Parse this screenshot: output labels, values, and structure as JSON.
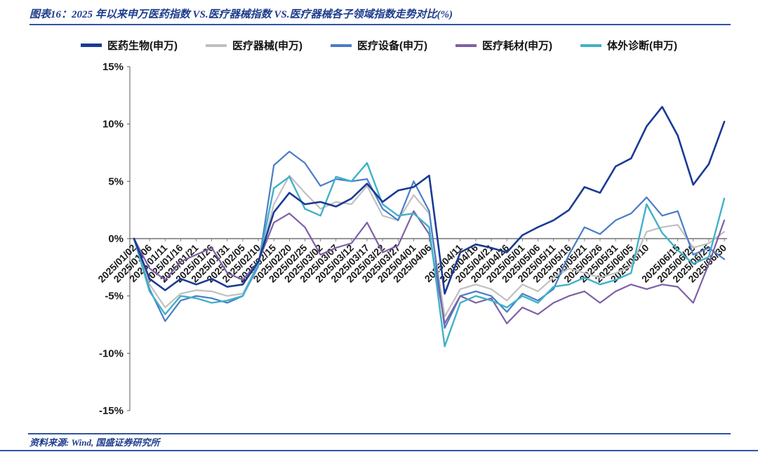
{
  "source_note": "资料来源: Wind, 国盛证券研究所",
  "accent_colors": {
    "title_blue": "#1e3c8c",
    "rule_blue": "#2e55a0",
    "axis_gray": "#595959"
  },
  "chart_data": {
    "type": "line",
    "title": "图表16：2025 年以来申万医药指数 VS.医疗器械指数 VS.医疗器械各子领域指数走势对比(%)",
    "xlabel": "",
    "ylabel": "",
    "ylim": [
      -15,
      15
    ],
    "yticks": [
      15,
      10,
      5,
      0,
      -5,
      -10,
      -15
    ],
    "ytick_labels": [
      "15%",
      "10%",
      "5%",
      "0%",
      "-5%",
      "-10%",
      "-15%"
    ],
    "grid": false,
    "legend_position": "top",
    "axis_color": "#595959",
    "draw_order": [
      1,
      2,
      3,
      4,
      0
    ],
    "categories": [
      "2025/01/02",
      "2025/01/06",
      "2025/01/11",
      "2025/01/16",
      "2025/01/21",
      "2025/01/26",
      "2025/01/31",
      "2025/02/05",
      "2025/02/10",
      "2025/02/15",
      "2025/02/20",
      "2025/02/25",
      "2025/03/02",
      "2025/03/07",
      "2025/03/12",
      "2025/03/17",
      "2025/03/22",
      "2025/03/27",
      "2025/04/01",
      "2025/04/06",
      "2025/04/08",
      "2025/04/11",
      "2025/04/16",
      "2025/04/21",
      "2025/04/26",
      "2025/05/01",
      "2025/05/06",
      "2025/05/11",
      "2025/05/16",
      "2025/05/21",
      "2025/05/26",
      "2025/05/31",
      "2025/06/05",
      "2025/06/10",
      "2025/06/12",
      "2025/06/15",
      "2025/06/20",
      "2025/06/25",
      "2025/06/30"
    ],
    "xtick_labels": [
      "2025/01/02",
      "2025/01/06",
      "2025/01/11",
      "2025/01/16",
      "2025/01/21",
      "2025/01/26",
      "2025/01/31",
      "2025/02/05",
      "2025/02/10",
      "2025/02/15",
      "2025/02/20",
      "2025/02/25",
      "2025/03/02",
      "2025/03/07",
      "2025/03/12",
      "2025/03/17",
      "2025/03/22",
      "2025/03/27",
      "2025/04/01",
      "2025/04/06",
      "2025/04/11",
      "2025/04/16",
      "2025/04/21",
      "2025/04/26",
      "2025/05/01",
      "2025/05/06",
      "2025/05/11",
      "2025/05/16",
      "2025/05/21",
      "2025/05/26",
      "2025/05/31",
      "2025/06/05",
      "2025/06/10",
      "2025/06/15",
      "2025/06/20",
      "2025/06/25",
      "2025/06/30"
    ],
    "series": [
      {
        "id": "pharma-bio",
        "name": "医药生物(申万)",
        "color": "#1a3a94",
        "width": 2.6,
        "values": [
          0,
          -3.5,
          -4.5,
          -3.5,
          -4,
          -3.5,
          -4.2,
          -4,
          -2,
          2.3,
          4,
          3,
          3.2,
          2.8,
          3.5,
          4.8,
          3.2,
          4.2,
          4.5,
          5.5,
          -4.8,
          -1.2,
          -0.5,
          -0.8,
          -1.2,
          0.3,
          1,
          1.6,
          2.5,
          4.5,
          4,
          6.3,
          7,
          9.8,
          11.5,
          9,
          4.7,
          6.5,
          10.2
        ]
      },
      {
        "id": "medical-devices",
        "name": "医疗器械(申万)",
        "color": "#c0c0c0",
        "width": 2.2,
        "values": [
          0,
          -4,
          -6,
          -4.8,
          -4.5,
          -4.6,
          -5,
          -4.8,
          -2.2,
          3,
          5.5,
          4,
          2.6,
          3.2,
          3,
          4.6,
          2,
          1.6,
          3.8,
          2.2,
          -6.8,
          -4.4,
          -4,
          -4.4,
          -5.4,
          -4,
          -4.6,
          -3.4,
          -2.6,
          -3,
          -3.4,
          -3,
          -2.4,
          0.6,
          1,
          1.2,
          -0.8,
          -0.4,
          0.6
        ]
      },
      {
        "id": "medical-equipment",
        "name": "医疗设备(申万)",
        "color": "#4a7cc7",
        "width": 2.2,
        "values": [
          0,
          -4.4,
          -7.2,
          -5.4,
          -5,
          -5.2,
          -5.6,
          -5,
          -2.4,
          6.4,
          7.6,
          6.6,
          4.6,
          5.2,
          5,
          5.2,
          2.6,
          1.6,
          5,
          2.4,
          -7.8,
          -5,
          -4.6,
          -5,
          -6.4,
          -4.8,
          -5.4,
          -4.4,
          -1.4,
          1,
          0.4,
          1.6,
          2.2,
          3.6,
          2,
          2.4,
          -1.4,
          -0.8,
          -1.8
        ]
      },
      {
        "id": "medical-consumables",
        "name": "医疗耗材(申万)",
        "color": "#7e5fa6",
        "width": 2.2,
        "values": [
          0,
          -2.6,
          -3.6,
          -2,
          -1.4,
          -0.8,
          -3,
          -3.6,
          -2,
          1.4,
          2.2,
          1,
          -1.4,
          -0.8,
          -0.4,
          1.4,
          -1.2,
          -0.6,
          2.4,
          0.4,
          -7.4,
          -5,
          -5.6,
          -5.2,
          -7.4,
          -6,
          -6.6,
          -5.6,
          -5,
          -4.6,
          -5.6,
          -4.6,
          -4,
          -4.4,
          -4,
          -4.2,
          -5.6,
          -2.2,
          1.6
        ]
      },
      {
        "id": "ivd",
        "name": "体外诊断(申万)",
        "color": "#41b1c9",
        "width": 2.4,
        "values": [
          0,
          -4.6,
          -6.6,
          -5,
          -5.2,
          -5.6,
          -5.4,
          -5,
          -2.2,
          4.4,
          5.4,
          2.6,
          2,
          5.4,
          5,
          6.6,
          3,
          2,
          2.2,
          1,
          -9.4,
          -5.6,
          -5,
          -5.4,
          -6,
          -5,
          -5.6,
          -4.2,
          -4,
          -3.4,
          -4,
          -3.6,
          -3,
          3,
          0.5,
          -1,
          -2.2,
          -1.6,
          3.5
        ]
      }
    ]
  }
}
